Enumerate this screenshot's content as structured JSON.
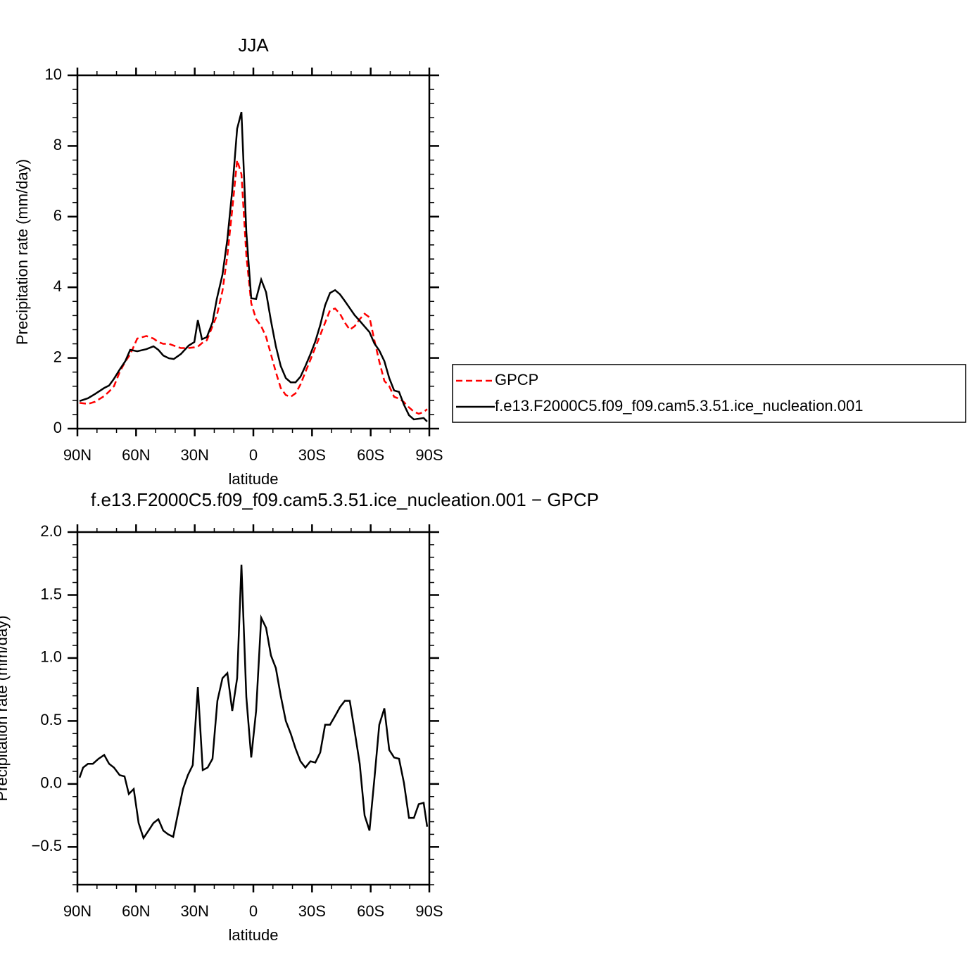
{
  "chart_data": [
    {
      "type": "line",
      "title": "JJA",
      "xlabel": "latitude",
      "ylabel": "Precipitation rate (mm/day)",
      "x": [
        88.9,
        84.6,
        81,
        76.3,
        73.8,
        71.3,
        68.4,
        65.5,
        63,
        59.4,
        54.7,
        51.1,
        48.6,
        46.1,
        43.2,
        40.7,
        37.1,
        33.1,
        30.2,
        28.4,
        26.3,
        23.8,
        20.9,
        18.7,
        15.8,
        13.3,
        10.8,
        8.3,
        6.1,
        3.6,
        1.1,
        -1.4,
        -4,
        -6.5,
        -9,
        -11.5,
        -14,
        -16.6,
        -19.1,
        -21.6,
        -24.1,
        -26.6,
        -29.2,
        -31.7,
        -34.2,
        -36.7,
        -39.2,
        -41.8,
        -44.3,
        -46.8,
        -49.3,
        -51.8,
        -54.4,
        -56.9,
        -59.4,
        -61.9,
        -64.4,
        -67,
        -69.5,
        -72,
        -74.5,
        -77,
        -79.6,
        -82.1,
        -84.6,
        -87.1,
        -88.9
      ],
      "series": [
        {
          "name": "GPCP",
          "color": "#ff0000",
          "line_style": "dashed",
          "values": [
            0.73,
            0.7,
            0.76,
            0.92,
            1.05,
            1.2,
            1.6,
            1.9,
            2.1,
            2.55,
            2.62,
            2.55,
            2.45,
            2.4,
            2.4,
            2.35,
            2.28,
            2.28,
            2.3,
            2.32,
            2.42,
            2.5,
            2.9,
            3.2,
            3.9,
            4.9,
            6.2,
            7.6,
            7.2,
            4.9,
            3.55,
            3.1,
            2.9,
            2.6,
            2.1,
            1.6,
            1.15,
            0.95,
            0.9,
            1.0,
            1.25,
            1.6,
            1.95,
            2.3,
            2.65,
            3.0,
            3.35,
            3.4,
            3.25,
            3.0,
            2.8,
            2.9,
            3.1,
            3.25,
            3.15,
            2.5,
            1.9,
            1.35,
            1.2,
            0.9,
            0.85,
            0.75,
            0.6,
            0.48,
            0.42,
            0.47,
            0.55
          ]
        },
        {
          "name": "f.e13.F2000C5.f09_f09.cam5.3.51.ice_nucleation.001",
          "color": "#000000",
          "line_style": "solid",
          "values": [
            0.78,
            0.86,
            0.98,
            1.15,
            1.22,
            1.41,
            1.67,
            1.91,
            2.23,
            2.19,
            2.25,
            2.33,
            2.23,
            2.07,
            1.99,
            1.97,
            2.11,
            2.35,
            2.45,
            3.07,
            2.53,
            2.59,
            3.01,
            3.67,
            4.36,
            5.36,
            6.75,
            8.49,
            8.96,
            5.56,
            3.69,
            3.67,
            4.22,
            3.86,
            3.05,
            2.33,
            1.77,
            1.43,
            1.31,
            1.31,
            1.47,
            1.77,
            2.11,
            2.47,
            2.93,
            3.49,
            3.84,
            3.92,
            3.8,
            3.61,
            3.41,
            3.21,
            3.05,
            2.89,
            2.73,
            2.41,
            2.21,
            1.91,
            1.43,
            1.08,
            1.04,
            0.68,
            0.38,
            0.26,
            0.28,
            0.3,
            0.2
          ]
        }
      ],
      "xlim": [
        90,
        -90
      ],
      "xticks": [
        {
          "value": 90,
          "label": "90N"
        },
        {
          "value": 60,
          "label": "60N"
        },
        {
          "value": 30,
          "label": "30N"
        },
        0,
        {
          "value": -30,
          "label": "30S"
        },
        {
          "value": -60,
          "label": "60S"
        },
        {
          "value": -90,
          "label": "90S"
        }
      ],
      "ylim": [
        0,
        10
      ],
      "yticks": [
        0,
        2,
        4,
        6,
        8,
        10
      ],
      "legend": "right"
    },
    {
      "type": "line",
      "title": "f.e13.F2000C5.f09_f09.cam5.3.51.ice_nucleation.001 − GPCP",
      "xlabel": "latitude",
      "ylabel": "Precipitation rate (mm/day)",
      "color": "#000000",
      "x": [
        88.9,
        87.1,
        84.6,
        82.1,
        79.2,
        76.3,
        73.8,
        71.3,
        68.4,
        65.9,
        63.7,
        61.2,
        58.7,
        56.2,
        53.6,
        51.1,
        48.6,
        46.1,
        43.6,
        41.0,
        38.5,
        36.0,
        33.5,
        31.0,
        28.4,
        25.9,
        23.4,
        20.9,
        18.4,
        15.8,
        13.3,
        10.8,
        8.3,
        6.1,
        3.6,
        1.1,
        -1.4,
        -4.0,
        -6.5,
        -9.0,
        -11.5,
        -14.0,
        -16.6,
        -19.1,
        -21.6,
        -24.1,
        -26.6,
        -29.2,
        -31.7,
        -34.2,
        -36.7,
        -39.2,
        -41.8,
        -44.3,
        -46.8,
        -49.3,
        -51.8,
        -54.4,
        -56.9,
        -59.4,
        -61.9,
        -64.4,
        -67.0,
        -69.5,
        -72.0,
        -74.5,
        -77.0,
        -79.6,
        -82.1,
        -84.6,
        -87.1,
        -88.9
      ],
      "values": [
        0.05,
        0.13,
        0.16,
        0.16,
        0.2,
        0.23,
        0.16,
        0.13,
        0.07,
        0.06,
        -0.08,
        -0.04,
        -0.31,
        -0.43,
        -0.37,
        -0.31,
        -0.28,
        -0.37,
        -0.4,
        -0.42,
        -0.23,
        -0.04,
        0.07,
        0.15,
        0.77,
        0.11,
        0.13,
        0.2,
        0.66,
        0.84,
        0.88,
        0.58,
        0.84,
        1.74,
        0.69,
        0.21,
        0.58,
        1.32,
        1.24,
        1.02,
        0.92,
        0.7,
        0.5,
        0.4,
        0.28,
        0.18,
        0.13,
        0.18,
        0.17,
        0.25,
        0.47,
        0.47,
        0.54,
        0.61,
        0.66,
        0.66,
        0.42,
        0.16,
        -0.25,
        -0.37,
        0.04,
        0.47,
        0.6,
        0.27,
        0.21,
        0.2,
        0.01,
        -0.27,
        -0.27,
        -0.16,
        -0.15,
        -0.34
      ],
      "xlim": [
        90,
        -90
      ],
      "xticks": [
        {
          "value": 90,
          "label": "90N"
        },
        {
          "value": 60,
          "label": "60N"
        },
        {
          "value": 30,
          "label": "30N"
        },
        0,
        {
          "value": -30,
          "label": "30S"
        },
        {
          "value": -60,
          "label": "60S"
        },
        {
          "value": -90,
          "label": "90S"
        }
      ],
      "ylim": [
        -0.8,
        2.0
      ],
      "yticks": [
        {
          "value": -0.5,
          "label": "−0.5"
        },
        {
          "value": 0,
          "label": "0.0"
        },
        0.5,
        {
          "value": 1,
          "label": "1.0"
        },
        1.5,
        {
          "value": 2,
          "label": "2.0"
        }
      ]
    }
  ]
}
